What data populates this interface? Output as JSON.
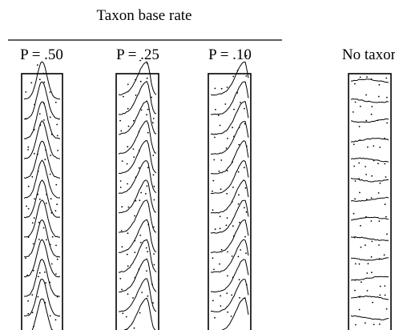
{
  "chart_data": {
    "type": "line",
    "group_label": "Taxon base rate",
    "panels": [
      {
        "label": "P = .50",
        "shape": "peaked",
        "peak_position": 0.5,
        "taxon_base_rate": 0.5
      },
      {
        "label": "P = .25",
        "shape": "rising-peak",
        "peak_position": 0.75,
        "taxon_base_rate": 0.25
      },
      {
        "label": "P = .10",
        "shape": "rising-peak",
        "peak_position": 0.9,
        "taxon_base_rate": 0.1
      },
      {
        "label": "No taxon",
        "shape": "flat",
        "peak_position": null,
        "taxon_base_rate": 0
      }
    ],
    "curves_per_panel": 13,
    "x_label": "",
    "y_label": "",
    "grid": false,
    "legend": "none"
  }
}
